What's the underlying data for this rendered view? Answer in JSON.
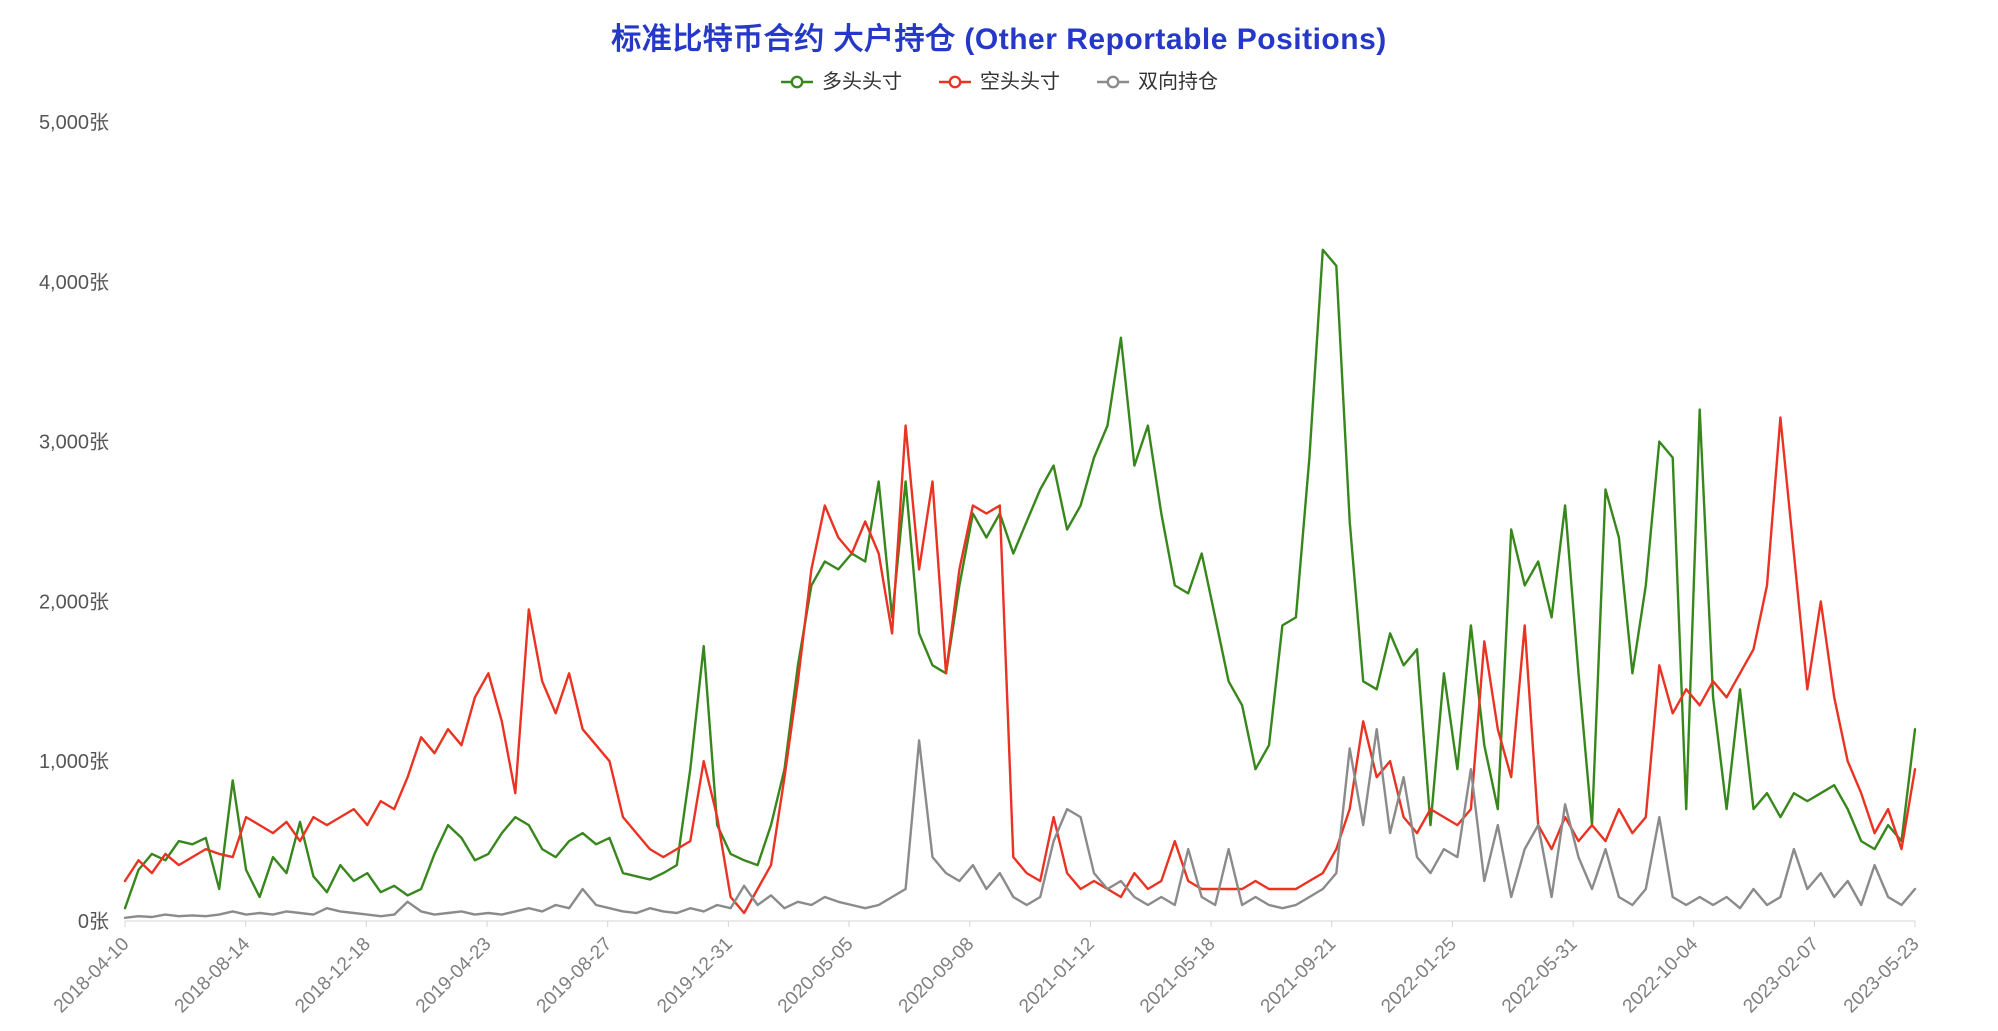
{
  "chart": {
    "title": "标准比特币合约 大户持仓 (Other Reportable Positions)",
    "title_color": "#2538c8",
    "background_color": "#ffffff",
    "axis_line_color": "#d4d4d4",
    "y_label_color": "#555555",
    "x_label_color": "#808080"
  },
  "chart_data": {
    "type": "line",
    "title": "标准比特币合约 大户持仓 (Other Reportable Positions)",
    "xlabel": "",
    "ylabel": "",
    "y_unit": "张",
    "ylim": [
      0,
      5000
    ],
    "grid": false,
    "legend_position": "top",
    "y_tick_values": [
      0,
      1000,
      2000,
      3000,
      4000,
      5000
    ],
    "y_tick_labels": [
      "0张",
      "1,000张",
      "2,000张",
      "3,000张",
      "4,000张",
      "5,000张"
    ],
    "x_tick_labels": [
      "2018-04-10",
      "2018-08-14",
      "2018-12-18",
      "2019-04-23",
      "2019-08-27",
      "2019-12-31",
      "2020-05-05",
      "2020-09-08",
      "2021-01-12",
      "2021-05-18",
      "2021-09-21",
      "2022-01-25",
      "2022-05-31",
      "2022-10-04",
      "2023-02-07",
      "2023-05-23"
    ],
    "x_tick_positions": [
      0,
      0.06742,
      0.13483,
      0.20225,
      0.26966,
      0.33708,
      0.40449,
      0.47191,
      0.53933,
      0.60674,
      0.67416,
      0.74157,
      0.80899,
      0.8764,
      0.94382,
      1
    ],
    "x_note": "weekly data 2018-04-10 to 2023-05-23, sampled ~biweekly, values in 张 (contracts)",
    "series": [
      {
        "key": "long",
        "name": "多头头寸",
        "color": "#38871d",
        "values": [
          80,
          320,
          420,
          380,
          500,
          480,
          520,
          200,
          880,
          320,
          150,
          400,
          300,
          620,
          280,
          180,
          350,
          250,
          300,
          180,
          220,
          160,
          200,
          420,
          600,
          520,
          380,
          420,
          550,
          650,
          600,
          450,
          400,
          500,
          550,
          480,
          520,
          300,
          280,
          260,
          300,
          350,
          950,
          1720,
          600,
          420,
          380,
          350,
          600,
          950,
          1600,
          2100,
          2250,
          2200,
          2300,
          2250,
          2750,
          1900,
          2750,
          1800,
          1600,
          1550,
          2100,
          2550,
          2400,
          2550,
          2300,
          2500,
          2700,
          2850,
          2450,
          2600,
          2900,
          3100,
          3650,
          2850,
          3100,
          2550,
          2100,
          2050,
          2300,
          1900,
          1500,
          1350,
          950,
          1100,
          1850,
          1900,
          2900,
          4200,
          4100,
          2500,
          1500,
          1450,
          1800,
          1600,
          1700,
          600,
          1550,
          950,
          1850,
          1100,
          700,
          2450,
          2100,
          2250,
          1900,
          2600,
          1550,
          600,
          2700,
          2400,
          1550,
          2100,
          3000,
          2900,
          700,
          3200,
          1400,
          700,
          1450,
          700,
          800,
          650,
          800,
          750,
          800,
          850,
          700,
          500,
          450,
          600,
          500,
          1200
        ]
      },
      {
        "key": "short",
        "name": "空头头寸",
        "color": "#ea3323",
        "values": [
          250,
          380,
          300,
          420,
          350,
          400,
          450,
          420,
          400,
          650,
          600,
          550,
          620,
          500,
          650,
          600,
          650,
          700,
          600,
          750,
          700,
          900,
          1150,
          1050,
          1200,
          1100,
          1400,
          1550,
          1250,
          800,
          1950,
          1500,
          1300,
          1550,
          1200,
          1100,
          1000,
          650,
          550,
          450,
          400,
          450,
          500,
          1000,
          650,
          150,
          50,
          200,
          350,
          900,
          1500,
          2200,
          2600,
          2400,
          2300,
          2500,
          2300,
          1800,
          3100,
          2200,
          2750,
          1550,
          2200,
          2600,
          2550,
          2600,
          400,
          300,
          250,
          650,
          300,
          200,
          250,
          200,
          150,
          300,
          200,
          250,
          500,
          250,
          200,
          200,
          200,
          200,
          250,
          200,
          200,
          200,
          250,
          300,
          450,
          700,
          1250,
          900,
          1000,
          650,
          550,
          700,
          650,
          600,
          700,
          1750,
          1200,
          900,
          1850,
          600,
          450,
          650,
          500,
          600,
          500,
          700,
          550,
          650,
          1600,
          1300,
          1450,
          1350,
          1500,
          1400,
          1550,
          1700,
          2100,
          3150,
          2300,
          1450,
          2000,
          1400,
          1000,
          800,
          550,
          700,
          450,
          950
        ]
      },
      {
        "key": "spread",
        "name": "双向持仓",
        "color": "#8b8b8b",
        "values": [
          20,
          30,
          25,
          40,
          30,
          35,
          30,
          40,
          60,
          40,
          50,
          40,
          60,
          50,
          40,
          80,
          60,
          50,
          40,
          30,
          40,
          120,
          60,
          40,
          50,
          60,
          40,
          50,
          40,
          60,
          80,
          60,
          100,
          80,
          200,
          100,
          80,
          60,
          50,
          80,
          60,
          50,
          80,
          60,
          100,
          80,
          220,
          100,
          160,
          80,
          120,
          100,
          150,
          120,
          100,
          80,
          100,
          150,
          200,
          1130,
          400,
          300,
          250,
          350,
          200,
          300,
          150,
          100,
          150,
          500,
          700,
          650,
          300,
          200,
          250,
          150,
          100,
          150,
          100,
          450,
          150,
          100,
          450,
          100,
          150,
          100,
          80,
          100,
          150,
          200,
          300,
          1080,
          600,
          1200,
          550,
          900,
          400,
          300,
          450,
          400,
          950,
          250,
          600,
          150,
          450,
          600,
          150,
          730,
          400,
          200,
          450,
          150,
          100,
          200,
          650,
          150,
          100,
          150,
          100,
          150,
          80,
          200,
          100,
          150,
          450,
          200,
          300,
          150,
          250,
          100,
          350,
          150,
          100,
          200
        ]
      }
    ]
  }
}
